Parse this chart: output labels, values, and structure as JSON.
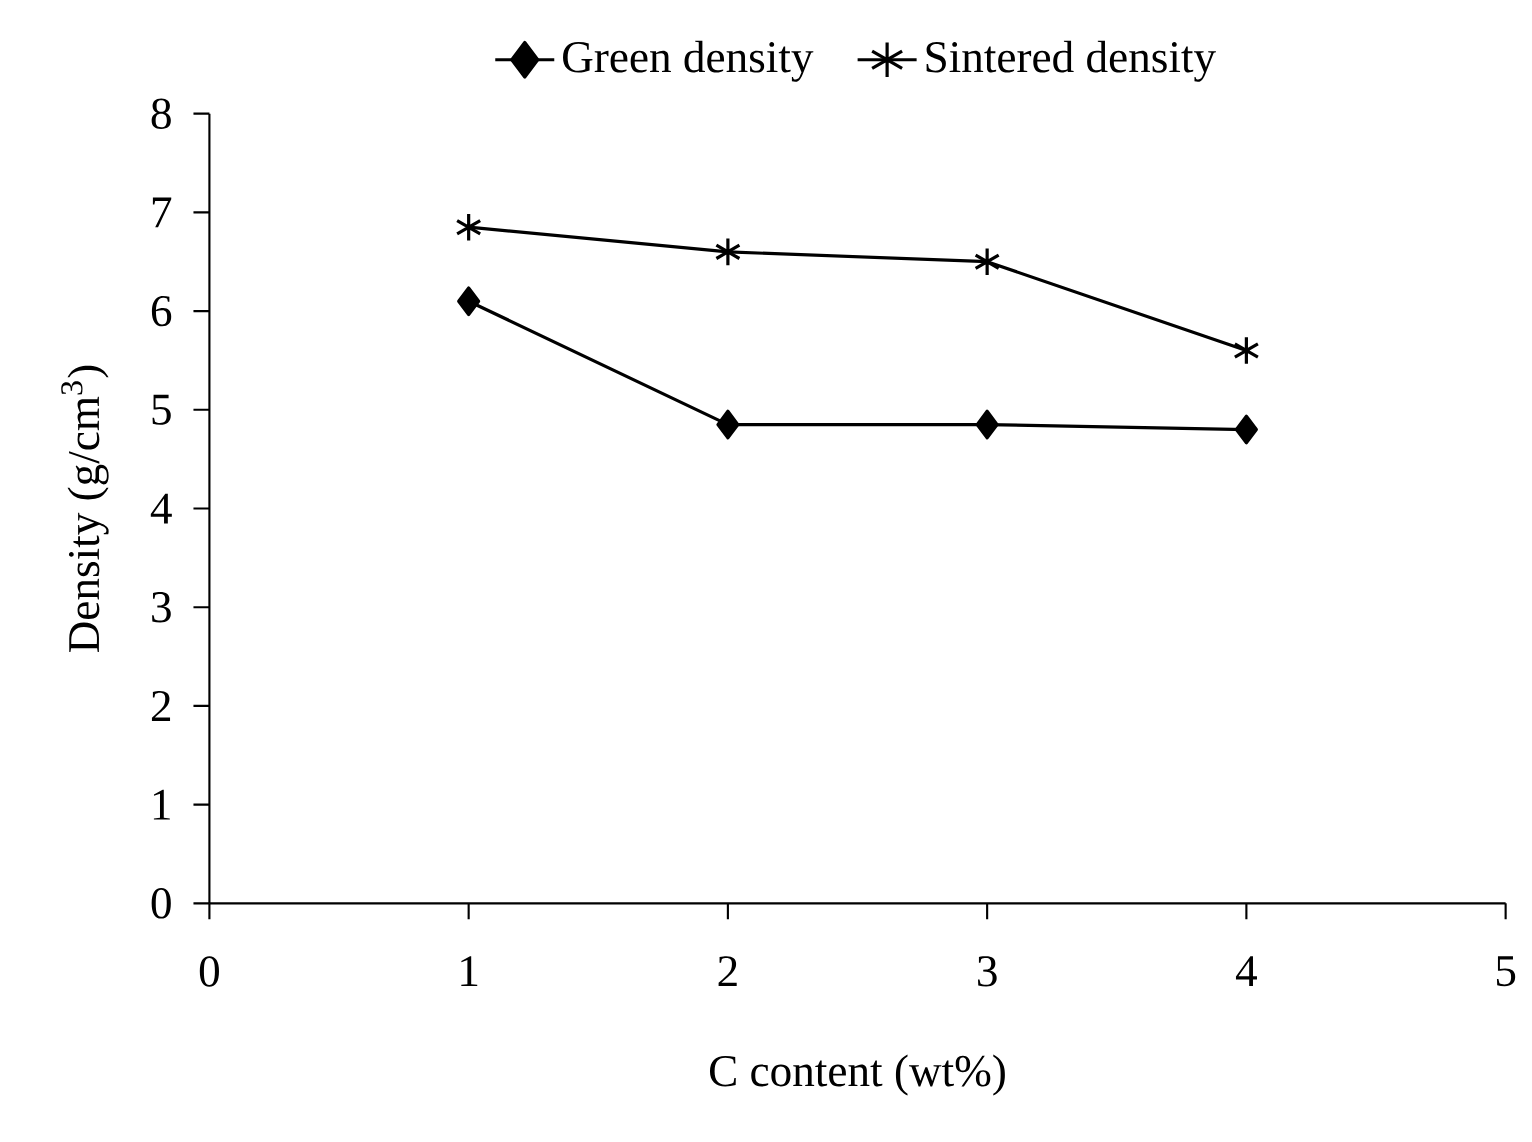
{
  "chart_data": {
    "type": "line",
    "xlabel": "C content (wt%)",
    "ylabel": "Density (g/cm$^{3}$)",
    "x": [
      1,
      2,
      3,
      4
    ],
    "series": [
      {
        "name": "Green density",
        "color": "#000000",
        "marker": "diamond",
        "values": [
          6.1,
          4.85,
          4.85,
          4.8
        ]
      },
      {
        "name": "Sintered density",
        "color": "#000000",
        "marker": "cross",
        "values": [
          6.85,
          6.6,
          6.5,
          5.6
        ]
      }
    ],
    "xlim": [
      0,
      5
    ],
    "xticks": [
      0,
      1,
      2,
      3,
      4,
      5
    ],
    "ylim": [
      0,
      8
    ],
    "yticks": [
      0,
      1,
      2,
      3,
      4,
      5,
      6,
      7,
      8
    ],
    "grid": false,
    "legend": "top",
    "line_style": "solid"
  }
}
